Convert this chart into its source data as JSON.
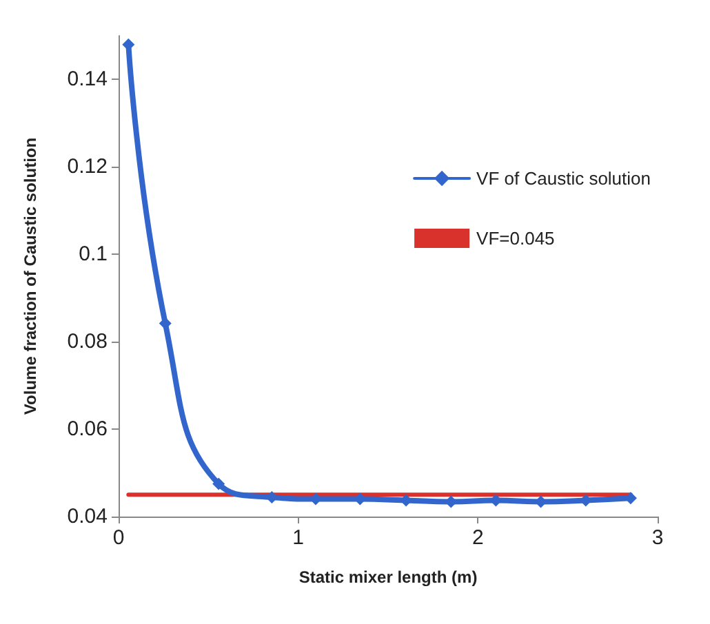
{
  "chart_data": {
    "type": "line",
    "xlabel": "Static mixer length (m)",
    "ylabel": "Volume fraction of Caustic solution",
    "xlim": [
      0,
      3
    ],
    "xticks": [
      0,
      1,
      2,
      3
    ],
    "ylim": [
      0.04,
      0.15
    ],
    "yticks": [
      0.04,
      0.06,
      0.08,
      0.1,
      0.12,
      0.14
    ],
    "grid": false,
    "legend": "top right",
    "line_style": "solid",
    "series": [
      {
        "name": "VF of Caustic solution",
        "color": "#3366cc",
        "marker": "diamond",
        "x": [
          0.055,
          0.26,
          0.557,
          0.853,
          1.097,
          1.344,
          1.6,
          1.85,
          2.1,
          2.35,
          2.6,
          2.85
        ],
        "values": [
          0.148,
          0.0842,
          0.0475,
          0.0444,
          0.044,
          0.044,
          0.0437,
          0.0434,
          0.0437,
          0.0434,
          0.0437,
          0.0442
        ]
      },
      {
        "name": "VF=0.045",
        "color": "#d9312b",
        "marker": "none",
        "x": [
          0.055,
          2.85
        ],
        "values": [
          0.045,
          0.045
        ]
      }
    ]
  }
}
